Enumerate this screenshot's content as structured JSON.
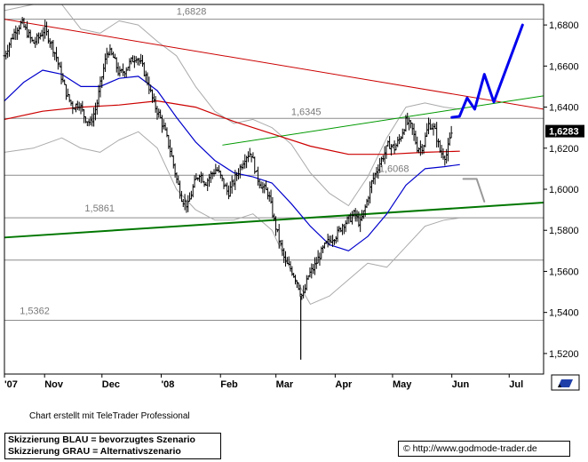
{
  "chart_data": {
    "type": "line",
    "ylim": [
      1.51,
      1.69
    ],
    "y_ticks": [
      "1,6800",
      "1,6600",
      "1,6400",
      "1,6200",
      "1,6000",
      "1,5800",
      "1,5600",
      "1,5400",
      "1,5200"
    ],
    "y_tick_values": [
      1.68,
      1.66,
      1.64,
      1.62,
      1.6,
      1.58,
      1.56,
      1.54,
      1.52
    ],
    "x_ticks": [
      {
        "label": "'07",
        "day": 0
      },
      {
        "label": "Nov",
        "day": 21
      },
      {
        "label": "Dec",
        "day": 51
      },
      {
        "label": "'08",
        "day": 82
      },
      {
        "label": "Feb",
        "day": 113
      },
      {
        "label": "Mar",
        "day": 142
      },
      {
        "label": "Apr",
        "day": 173
      },
      {
        "label": "May",
        "day": 203
      },
      {
        "label": "Jun",
        "day": 234
      },
      {
        "label": "Jul",
        "day": 264
      }
    ],
    "current_price_label": "1,6283",
    "current_price": 1.6283,
    "level_labels": [
      {
        "text": "1,6828",
        "value": 1.6828
      },
      {
        "text": "1,6345",
        "value": 1.6345
      },
      {
        "text": "1,6068",
        "value": 1.6068
      },
      {
        "text": "1,5861",
        "value": 1.5861
      },
      {
        "text": "1,5362",
        "value": 1.5362
      }
    ],
    "horizontal_levels": [
      1.6828,
      1.6345,
      1.6068,
      1.5861,
      1.5655,
      1.5362
    ],
    "trendlines": [
      {
        "name": "resistance",
        "color": "#cc0000",
        "from": [
          0,
          1.6828
        ],
        "to": [
          282,
          1.639
        ]
      },
      {
        "name": "upper",
        "color": "#009900",
        "from": [
          114,
          1.6215
        ],
        "to": [
          282,
          1.6455
        ]
      },
      {
        "name": "support",
        "color": "#007700",
        "from": [
          0,
          1.5765
        ],
        "to": [
          282,
          1.5935
        ]
      }
    ],
    "close_path": [
      [
        0,
        1.665
      ],
      [
        3,
        1.672
      ],
      [
        6,
        1.678
      ],
      [
        9,
        1.681
      ],
      [
        12,
        1.676
      ],
      [
        15,
        1.671
      ],
      [
        18,
        1.674
      ],
      [
        21,
        1.678
      ],
      [
        24,
        1.672
      ],
      [
        27,
        1.665
      ],
      [
        30,
        1.654
      ],
      [
        33,
        1.645
      ],
      [
        36,
        1.64
      ],
      [
        39,
        1.642
      ],
      [
        42,
        1.635
      ],
      [
        45,
        1.632
      ],
      [
        48,
        1.64
      ],
      [
        51,
        1.655
      ],
      [
        54,
        1.668
      ],
      [
        57,
        1.664
      ],
      [
        60,
        1.656
      ],
      [
        63,
        1.658
      ],
      [
        66,
        1.662
      ],
      [
        69,
        1.665
      ],
      [
        72,
        1.66
      ],
      [
        75,
        1.652
      ],
      [
        78,
        1.642
      ],
      [
        81,
        1.636
      ],
      [
        84,
        1.628
      ],
      [
        87,
        1.618
      ],
      [
        90,
        1.605
      ],
      [
        93,
        1.595
      ],
      [
        96,
        1.592
      ],
      [
        99,
        1.602
      ],
      [
        102,
        1.608
      ],
      [
        105,
        1.603
      ],
      [
        108,
        1.607
      ],
      [
        111,
        1.61
      ],
      [
        114,
        1.604
      ],
      [
        117,
        1.598
      ],
      [
        120,
        1.604
      ],
      [
        123,
        1.61
      ],
      [
        126,
        1.616
      ],
      [
        129,
        1.618
      ],
      [
        132,
        1.606
      ],
      [
        135,
        1.601
      ],
      [
        138,
        1.598
      ],
      [
        141,
        1.585
      ],
      [
        144,
        1.574
      ],
      [
        147,
        1.564
      ],
      [
        150,
        1.561
      ],
      [
        153,
        1.555
      ],
      [
        156,
        1.547
      ],
      [
        159,
        1.558
      ],
      [
        162,
        1.562
      ],
      [
        165,
        1.568
      ],
      [
        168,
        1.573
      ],
      [
        171,
        1.576
      ],
      [
        174,
        1.578
      ],
      [
        177,
        1.583
      ],
      [
        180,
        1.585
      ],
      [
        183,
        1.588
      ],
      [
        186,
        1.583
      ],
      [
        189,
        1.592
      ],
      [
        192,
        1.603
      ],
      [
        195,
        1.61
      ],
      [
        198,
        1.616
      ],
      [
        201,
        1.622
      ],
      [
        204,
        1.62
      ],
      [
        207,
        1.625
      ],
      [
        210,
        1.633
      ],
      [
        213,
        1.63
      ],
      [
        216,
        1.62
      ],
      [
        219,
        1.621
      ],
      [
        222,
        1.632
      ],
      [
        225,
        1.629
      ],
      [
        228,
        1.618
      ],
      [
        231,
        1.616
      ],
      [
        234,
        1.6283
      ]
    ],
    "sma_blue": [
      [
        0,
        1.643
      ],
      [
        10,
        1.652
      ],
      [
        20,
        1.658
      ],
      [
        30,
        1.656
      ],
      [
        40,
        1.65
      ],
      [
        50,
        1.65
      ],
      [
        60,
        1.654
      ],
      [
        70,
        1.655
      ],
      [
        80,
        1.648
      ],
      [
        90,
        1.635
      ],
      [
        100,
        1.623
      ],
      [
        110,
        1.614
      ],
      [
        120,
        1.608
      ],
      [
        130,
        1.606
      ],
      [
        140,
        1.603
      ],
      [
        150,
        1.593
      ],
      [
        160,
        1.582
      ],
      [
        170,
        1.573
      ],
      [
        180,
        1.57
      ],
      [
        190,
        1.577
      ],
      [
        200,
        1.588
      ],
      [
        210,
        1.602
      ],
      [
        220,
        1.61
      ],
      [
        230,
        1.611
      ],
      [
        238,
        1.612
      ]
    ],
    "sma_red": [
      [
        0,
        1.634
      ],
      [
        20,
        1.638
      ],
      [
        40,
        1.64
      ],
      [
        60,
        1.641
      ],
      [
        80,
        1.643
      ],
      [
        100,
        1.64
      ],
      [
        120,
        1.633
      ],
      [
        140,
        1.627
      ],
      [
        160,
        1.621
      ],
      [
        180,
        1.617
      ],
      [
        200,
        1.617
      ],
      [
        220,
        1.618
      ],
      [
        238,
        1.6185
      ]
    ],
    "band_upper": [
      [
        0,
        1.687
      ],
      [
        15,
        1.69
      ],
      [
        30,
        1.69
      ],
      [
        40,
        1.678
      ],
      [
        50,
        1.676
      ],
      [
        60,
        1.682
      ],
      [
        70,
        1.68
      ],
      [
        80,
        1.672
      ],
      [
        90,
        1.665
      ],
      [
        100,
        1.65
      ],
      [
        110,
        1.638
      ],
      [
        120,
        1.632
      ],
      [
        130,
        1.634
      ],
      [
        140,
        1.63
      ],
      [
        150,
        1.622
      ],
      [
        160,
        1.608
      ],
      [
        170,
        1.598
      ],
      [
        180,
        1.592
      ],
      [
        190,
        1.606
      ],
      [
        200,
        1.625
      ],
      [
        210,
        1.64
      ],
      [
        220,
        1.642
      ],
      [
        230,
        1.64
      ],
      [
        238,
        1.639
      ]
    ],
    "band_lower": [
      [
        0,
        1.618
      ],
      [
        15,
        1.62
      ],
      [
        30,
        1.625
      ],
      [
        40,
        1.62
      ],
      [
        50,
        1.618
      ],
      [
        60,
        1.624
      ],
      [
        70,
        1.628
      ],
      [
        80,
        1.62
      ],
      [
        90,
        1.6
      ],
      [
        100,
        1.59
      ],
      [
        110,
        1.585
      ],
      [
        120,
        1.585
      ],
      [
        130,
        1.588
      ],
      [
        140,
        1.58
      ],
      [
        150,
        1.56
      ],
      [
        160,
        1.544
      ],
      [
        170,
        1.548
      ],
      [
        180,
        1.556
      ],
      [
        190,
        1.564
      ],
      [
        200,
        1.562
      ],
      [
        210,
        1.572
      ],
      [
        220,
        1.582
      ],
      [
        230,
        1.585
      ],
      [
        238,
        1.586
      ]
    ],
    "scenario_blue": [
      [
        234,
        1.635
      ],
      [
        238,
        1.6355
      ],
      [
        242,
        1.6445
      ],
      [
        246,
        1.639
      ],
      [
        251,
        1.656
      ],
      [
        256,
        1.6425
      ],
      [
        271,
        1.68
      ]
    ],
    "scenario_grey": [
      [
        240,
        1.605
      ],
      [
        247,
        1.605
      ],
      [
        251,
        1.594
      ]
    ],
    "extreme_low": {
      "day": 155,
      "low": 1.517,
      "high": 1.548
    },
    "colors": {
      "price": "#000000",
      "sma_blue": "#0000cc",
      "sma_red": "#cc0000",
      "band": "#aaaaaa",
      "scenario_blue": "#0000ee",
      "scenario_grey": "#999999",
      "resistance": "#cc0000",
      "upper": "#009900",
      "support": "#007700"
    }
  },
  "axis_icon": "pencil-icon",
  "credit": "Chart erstellt mit TeleTrader Professional",
  "legend": {
    "line1": "Skizzierung BLAU = bevorzugtes Szenario",
    "line2": "Skizzierung GRAU = Alternativszenario"
  },
  "source": {
    "symbol": "©",
    "url": "http://www.godmode-trader.de"
  }
}
